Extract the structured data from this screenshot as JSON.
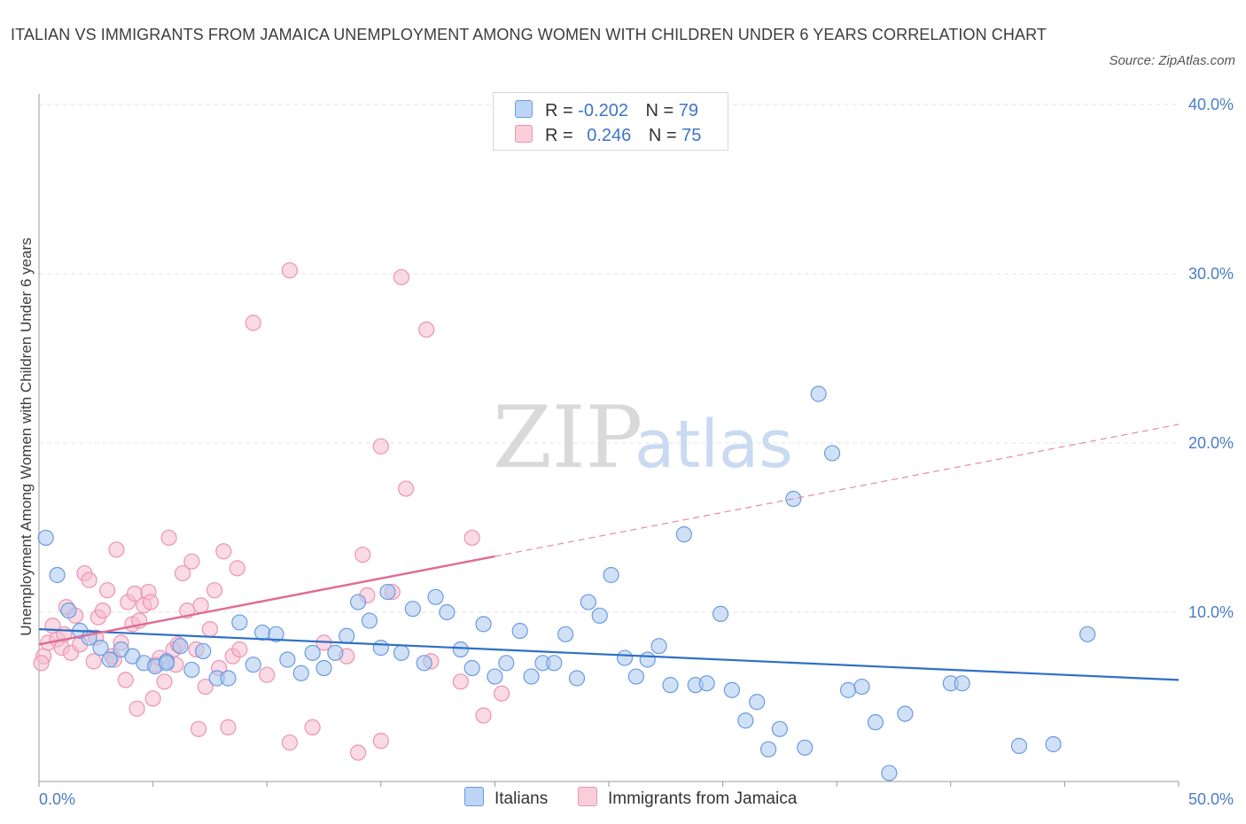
{
  "header": {
    "title": "ITALIAN VS IMMIGRANTS FROM JAMAICA UNEMPLOYMENT AMONG WOMEN WITH CHILDREN UNDER 6 YEARS CORRELATION CHART",
    "source": "Source: ZipAtlas.com"
  },
  "watermark": {
    "zip": "ZIP",
    "atlas": "atlas"
  },
  "legend": {
    "rows": [
      {
        "r_label": "R =",
        "r_value": "-0.202",
        "n_label": "N =",
        "n_value": "79"
      },
      {
        "r_label": "R =",
        "r_value": "0.246",
        "n_label": "N =",
        "n_value": "75"
      }
    ]
  },
  "colors": {
    "italians_fill": "#a9c8f0",
    "italians_stroke": "#6b9be0",
    "italians_line": "#2f6fc7",
    "jamaica_fill": "#f6bccd",
    "jamaica_stroke": "#ec94b0",
    "jamaica_line": "#e06b93",
    "axis_text": "#4a7cc7",
    "grid": "#e3e3e3"
  },
  "chart_data": {
    "type": "scatter",
    "title": "ITALIAN VS IMMIGRANTS FROM JAMAICA UNEMPLOYMENT AMONG WOMEN WITH CHILDREN UNDER 6 YEARS CORRELATION CHART",
    "xlabel": "",
    "ylabel": "Unemployment Among Women with Children Under 6 years",
    "xlim": [
      0,
      50
    ],
    "ylim": [
      0,
      40
    ],
    "x_ticks": [
      "0.0%",
      "50.0%"
    ],
    "y_ticks": [
      "10.0%",
      "20.0%",
      "30.0%",
      "40.0%"
    ],
    "y_tick_values": [
      10,
      20,
      30,
      40
    ],
    "grid": true,
    "legend_position": "top-center",
    "series": [
      {
        "name": "Italians",
        "r": -0.202,
        "n": 79,
        "trend": {
          "x0": 0,
          "y0": 9.0,
          "x1": 50,
          "y1": 6.0
        },
        "points": [
          [
            0.3,
            14.4
          ],
          [
            0.8,
            12.2
          ],
          [
            1.3,
            10.1
          ],
          [
            1.8,
            8.9
          ],
          [
            2.2,
            8.5
          ],
          [
            2.7,
            7.9
          ],
          [
            3.1,
            7.2
          ],
          [
            3.6,
            7.8
          ],
          [
            4.1,
            7.4
          ],
          [
            4.6,
            7.0
          ],
          [
            5.1,
            6.8
          ],
          [
            5.6,
            7.1
          ],
          [
            6.2,
            8.0
          ],
          [
            6.7,
            6.6
          ],
          [
            7.2,
            7.7
          ],
          [
            7.8,
            6.1
          ],
          [
            8.3,
            6.1
          ],
          [
            8.8,
            9.4
          ],
          [
            9.4,
            6.9
          ],
          [
            9.8,
            8.8
          ],
          [
            10.4,
            8.7
          ],
          [
            10.9,
            7.2
          ],
          [
            11.5,
            6.4
          ],
          [
            12.0,
            7.6
          ],
          [
            12.5,
            6.7
          ],
          [
            13.0,
            7.6
          ],
          [
            13.5,
            8.6
          ],
          [
            14.0,
            10.6
          ],
          [
            14.5,
            9.5
          ],
          [
            15.0,
            7.9
          ],
          [
            15.3,
            11.2
          ],
          [
            15.9,
            7.6
          ],
          [
            16.4,
            10.2
          ],
          [
            16.9,
            7.0
          ],
          [
            17.4,
            10.9
          ],
          [
            17.9,
            10.0
          ],
          [
            18.5,
            7.8
          ],
          [
            19.0,
            6.7
          ],
          [
            19.5,
            9.3
          ],
          [
            20.0,
            6.2
          ],
          [
            20.5,
            7.0
          ],
          [
            21.1,
            8.9
          ],
          [
            21.6,
            6.2
          ],
          [
            22.1,
            7.0
          ],
          [
            22.6,
            7.0
          ],
          [
            23.1,
            8.7
          ],
          [
            23.6,
            6.1
          ],
          [
            24.1,
            10.6
          ],
          [
            24.6,
            9.8
          ],
          [
            25.1,
            12.2
          ],
          [
            25.7,
            7.3
          ],
          [
            26.2,
            6.2
          ],
          [
            26.7,
            7.2
          ],
          [
            27.2,
            8.0
          ],
          [
            27.7,
            5.7
          ],
          [
            28.3,
            14.6
          ],
          [
            28.8,
            5.7
          ],
          [
            29.3,
            5.8
          ],
          [
            29.9,
            9.9
          ],
          [
            30.4,
            5.4
          ],
          [
            31.0,
            3.6
          ],
          [
            31.5,
            4.7
          ],
          [
            32.0,
            1.9
          ],
          [
            32.5,
            3.1
          ],
          [
            33.1,
            16.7
          ],
          [
            33.6,
            2.0
          ],
          [
            34.2,
            22.9
          ],
          [
            34.8,
            19.4
          ],
          [
            35.5,
            5.4
          ],
          [
            36.1,
            5.6
          ],
          [
            36.7,
            3.5
          ],
          [
            37.3,
            0.5
          ],
          [
            38.0,
            4.0
          ],
          [
            40.0,
            5.8
          ],
          [
            40.5,
            5.8
          ],
          [
            43.0,
            2.1
          ],
          [
            44.5,
            2.2
          ],
          [
            46.0,
            8.7
          ],
          [
            5.6,
            7.0
          ]
        ]
      },
      {
        "name": "Immigrants from Jamaica",
        "r": 0.246,
        "n": 75,
        "trend": {
          "x0": 0,
          "y0": 8.1,
          "x1": 20,
          "y1": 13.3
        },
        "trend_extension": {
          "x0": 20,
          "y0": 13.3,
          "x1": 50,
          "y1": 21.1
        },
        "points": [
          [
            0.2,
            7.4
          ],
          [
            0.4,
            8.2
          ],
          [
            0.6,
            9.2
          ],
          [
            0.8,
            8.4
          ],
          [
            1.0,
            7.9
          ],
          [
            1.2,
            10.3
          ],
          [
            1.4,
            7.6
          ],
          [
            1.6,
            9.8
          ],
          [
            1.8,
            8.1
          ],
          [
            2.0,
            12.3
          ],
          [
            2.2,
            11.9
          ],
          [
            2.4,
            7.1
          ],
          [
            2.6,
            9.7
          ],
          [
            2.8,
            10.1
          ],
          [
            3.0,
            11.3
          ],
          [
            3.2,
            7.4
          ],
          [
            3.4,
            13.7
          ],
          [
            3.6,
            8.2
          ],
          [
            3.8,
            6.0
          ],
          [
            3.9,
            10.6
          ],
          [
            4.1,
            9.3
          ],
          [
            4.2,
            11.1
          ],
          [
            4.4,
            9.5
          ],
          [
            4.6,
            10.4
          ],
          [
            4.8,
            11.2
          ],
          [
            4.9,
            10.6
          ],
          [
            5.1,
            6.9
          ],
          [
            5.3,
            7.3
          ],
          [
            5.5,
            5.9
          ],
          [
            5.7,
            14.4
          ],
          [
            5.9,
            7.8
          ],
          [
            6.1,
            8.1
          ],
          [
            6.3,
            12.3
          ],
          [
            6.5,
            10.1
          ],
          [
            6.7,
            13.0
          ],
          [
            6.9,
            7.8
          ],
          [
            7.1,
            10.4
          ],
          [
            7.3,
            5.6
          ],
          [
            7.5,
            9.0
          ],
          [
            7.7,
            11.3
          ],
          [
            7.9,
            6.7
          ],
          [
            8.1,
            13.6
          ],
          [
            8.3,
            3.2
          ],
          [
            8.5,
            7.4
          ],
          [
            8.7,
            12.6
          ],
          [
            9.4,
            27.1
          ],
          [
            10.0,
            6.3
          ],
          [
            11.0,
            2.3
          ],
          [
            11.0,
            30.2
          ],
          [
            12.0,
            3.2
          ],
          [
            12.5,
            8.2
          ],
          [
            13.5,
            7.4
          ],
          [
            14.0,
            1.7
          ],
          [
            14.2,
            13.4
          ],
          [
            14.4,
            11.0
          ],
          [
            15.0,
            19.8
          ],
          [
            15.0,
            2.4
          ],
          [
            15.5,
            11.2
          ],
          [
            15.9,
            29.8
          ],
          [
            16.1,
            17.3
          ],
          [
            17.0,
            26.7
          ],
          [
            17.2,
            7.1
          ],
          [
            18.5,
            5.9
          ],
          [
            19.0,
            14.4
          ],
          [
            19.5,
            3.9
          ],
          [
            20.3,
            5.2
          ],
          [
            5.0,
            4.9
          ],
          [
            4.3,
            4.3
          ],
          [
            7.0,
            3.1
          ],
          [
            2.5,
            8.5
          ],
          [
            3.3,
            7.2
          ],
          [
            1.1,
            8.7
          ],
          [
            6.0,
            6.9
          ],
          [
            8.8,
            7.8
          ],
          [
            0.1,
            7.0
          ]
        ]
      }
    ]
  },
  "bottom_legend": [
    {
      "label": "Italians"
    },
    {
      "label": "Immigrants from Jamaica"
    }
  ]
}
